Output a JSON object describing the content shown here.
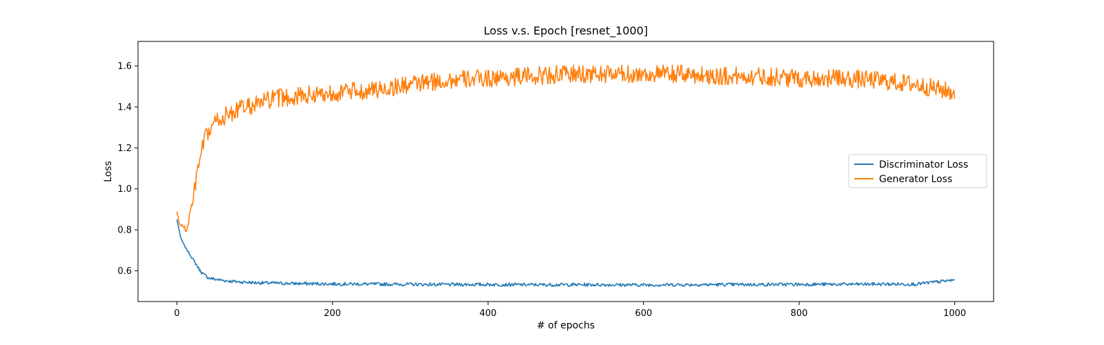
{
  "chart_data": {
    "type": "line",
    "title": "Loss v.s. Epoch [resnet_1000]",
    "xlabel": "# of epochs",
    "ylabel": "Loss",
    "xlim": [
      -50,
      1050
    ],
    "ylim": [
      0.45,
      1.72
    ],
    "xticks": [
      0,
      200,
      400,
      600,
      800,
      1000
    ],
    "yticks": [
      0.6,
      0.8,
      1.0,
      1.2,
      1.4,
      1.6
    ],
    "xtick_labels": [
      "0",
      "200",
      "400",
      "600",
      "800",
      "1000"
    ],
    "ytick_labels": [
      "0.6",
      "0.8",
      "1.0",
      "1.2",
      "1.4",
      "1.6"
    ],
    "grid": false,
    "legend_position": "center-right",
    "series": [
      {
        "name": "Discriminator Loss",
        "color": "#1f77b4",
        "x": [
          0,
          5,
          10,
          15,
          20,
          25,
          30,
          35,
          40,
          45,
          50,
          60,
          70,
          80,
          90,
          100,
          125,
          150,
          175,
          200,
          250,
          300,
          350,
          400,
          450,
          500,
          550,
          600,
          650,
          700,
          750,
          800,
          850,
          900,
          950,
          1000
        ],
        "y": [
          0.85,
          0.76,
          0.72,
          0.69,
          0.66,
          0.63,
          0.6,
          0.58,
          0.567,
          0.562,
          0.558,
          0.553,
          0.549,
          0.546,
          0.544,
          0.542,
          0.54,
          0.538,
          0.537,
          0.536,
          0.535,
          0.534,
          0.533,
          0.533,
          0.532,
          0.532,
          0.532,
          0.531,
          0.532,
          0.533,
          0.533,
          0.534,
          0.534,
          0.535,
          0.535,
          0.555
        ]
      },
      {
        "name": "Generator Loss",
        "color": "#ff7f0e",
        "x": [
          0,
          3,
          6,
          9,
          12,
          15,
          18,
          21,
          25,
          30,
          35,
          40,
          45,
          50,
          60,
          70,
          80,
          90,
          100,
          125,
          150,
          175,
          200,
          250,
          300,
          350,
          400,
          450,
          500,
          550,
          600,
          650,
          700,
          750,
          800,
          850,
          900,
          950,
          1000
        ],
        "y": [
          0.89,
          0.83,
          0.82,
          0.81,
          0.8,
          0.84,
          0.9,
          0.95,
          1.05,
          1.15,
          1.23,
          1.27,
          1.3,
          1.33,
          1.35,
          1.37,
          1.39,
          1.4,
          1.41,
          1.44,
          1.45,
          1.46,
          1.47,
          1.48,
          1.51,
          1.53,
          1.54,
          1.55,
          1.56,
          1.56,
          1.56,
          1.56,
          1.55,
          1.55,
          1.54,
          1.54,
          1.53,
          1.51,
          1.47
        ]
      }
    ]
  }
}
